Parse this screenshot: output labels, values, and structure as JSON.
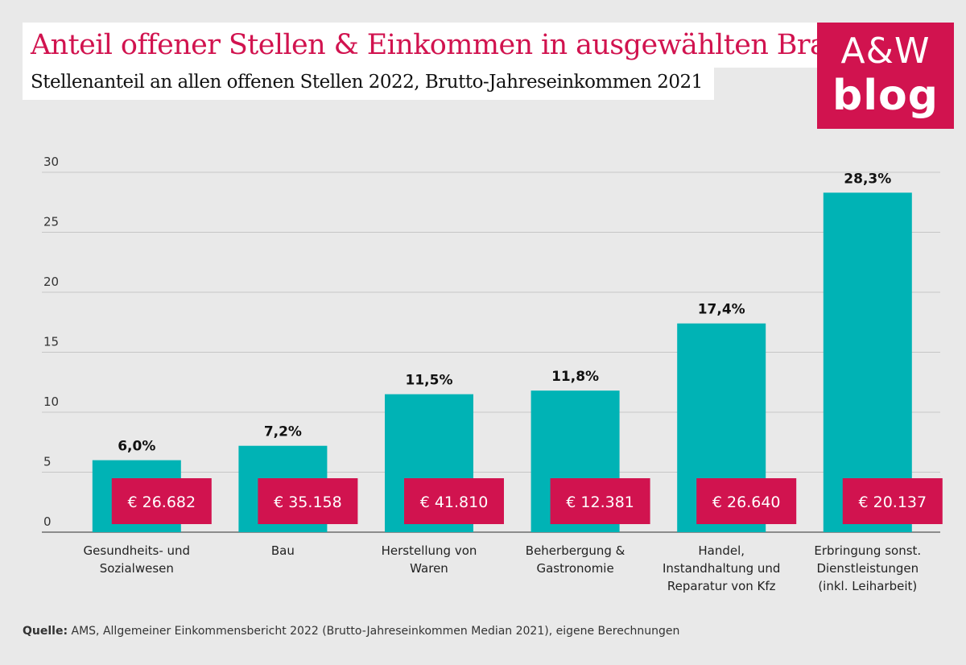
{
  "header": {
    "title": "Anteil offener Stellen & Einkommen in ausgewählten Branchen",
    "subtitle": "Stellenanteil an allen offenen Stellen 2022, Brutto-Jahreseinkommen 2021"
  },
  "logo": {
    "line1": "A&W",
    "line2": "blog"
  },
  "colors": {
    "bar": "#00b3b5",
    "accent": "#d1134f",
    "background": "#e9e9e9",
    "grid": "#c6c6c6"
  },
  "chart_data": {
    "type": "bar",
    "categories": [
      [
        "Gesundheits- und",
        "Sozialwesen"
      ],
      [
        "Bau"
      ],
      [
        "Herstellung von",
        "Waren"
      ],
      [
        "Beherbergung &",
        "Gastronomie"
      ],
      [
        "Handel,",
        "Instandhaltung und",
        "Reparatur von Kfz"
      ],
      [
        "Erbringung sonst.",
        "Dienstleistungen",
        "(inkl. Leiharbeit)"
      ]
    ],
    "values": [
      6.0,
      7.2,
      11.5,
      11.8,
      17.4,
      28.3
    ],
    "value_labels": [
      "6,0%",
      "7,2%",
      "11,5%",
      "11,8%",
      "17,4%",
      "28,3%"
    ],
    "income_labels": [
      "€ 26.682",
      "€ 35.158",
      "€ 41.810",
      "€ 12.381",
      "€ 26.640",
      "€ 20.137"
    ],
    "ylim": [
      0,
      30
    ],
    "yticks": [
      0,
      5,
      10,
      15,
      20,
      25,
      30
    ],
    "grid": true
  },
  "source": {
    "label": "Quelle:",
    "text": " AMS, Allgemeiner Einkommensbericht 2022 (Brutto-Jahreseinkommen Median 2021), eigene Berechnungen"
  }
}
